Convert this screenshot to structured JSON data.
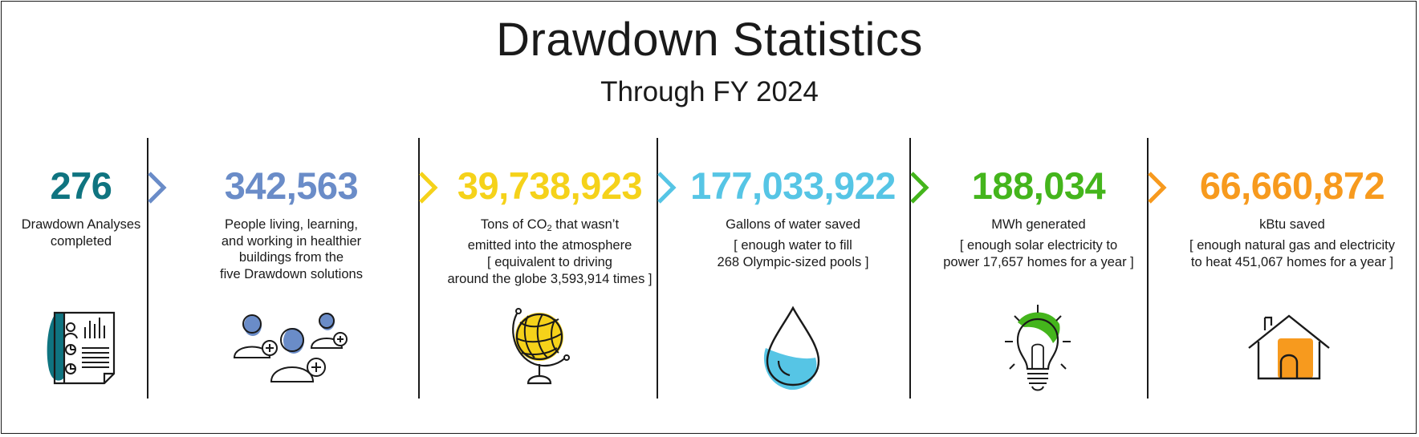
{
  "header": {
    "title": "Drawdown Statistics",
    "subtitle": "Through FY 2024"
  },
  "colors": {
    "teal": "#0f7480",
    "blue": "#6a8cc8",
    "yellow": "#f5d21a",
    "cyan": "#56c5e5",
    "green": "#44b51c",
    "orange": "#f79a1e"
  },
  "stats": [
    {
      "value": "276",
      "label_line1": "Drawdown Analyses",
      "label_line2": "completed",
      "color": "#0f7480",
      "icon": "report-icon"
    },
    {
      "value": "342,563",
      "label_line1": "People living, learning,",
      "label_line2": "and working in healthier",
      "label_line3": "buildings from the",
      "label_line4": "five Drawdown solutions",
      "color": "#6a8cc8",
      "icon": "people-icon"
    },
    {
      "value": "39,738,923",
      "label_pre": "Tons of CO",
      "label_sub": "2",
      "label_post": " that wasn’t",
      "label_line2": "emitted into the atmosphere",
      "note_line1": "[ equivalent to driving",
      "note_line2": "around the globe 3,593,914 times ]",
      "color": "#f5d21a",
      "icon": "globe-icon"
    },
    {
      "value": "177,033,922",
      "label_line1": "Gallons of water saved",
      "note_line1": "[ enough water to fill",
      "note_line2": "268 Olympic-sized pools ]",
      "color": "#56c5e5",
      "icon": "water-drop-icon"
    },
    {
      "value": "188,034",
      "label_line1": "MWh generated",
      "note_line1": "[ enough solar electricity to",
      "note_line2": "power 17,657 homes for a year ]",
      "color": "#44b51c",
      "icon": "lightbulb-icon"
    },
    {
      "value": "66,660,872",
      "label_line1": "kBtu saved",
      "note_line1": "[ enough natural gas and electricity",
      "note_line2": "to heat 451,067 homes for a year ]",
      "color": "#f79a1e",
      "icon": "house-icon"
    }
  ]
}
